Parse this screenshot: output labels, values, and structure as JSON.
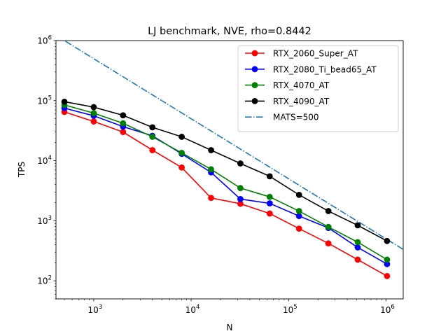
{
  "chart_data": {
    "type": "line",
    "title": "LJ benchmark, NVE, rho=0.8442",
    "xlabel": "N",
    "ylabel": "TPS",
    "xscale": "log",
    "yscale": "log",
    "xlim": [
      410,
      1500000
    ],
    "ylim": [
      50,
      1000000
    ],
    "grid": false,
    "legend_position": "top-right",
    "x_tick_labels": [
      {
        "value": 1000,
        "base": "10",
        "exp": "3"
      },
      {
        "value": 10000,
        "base": "10",
        "exp": "4"
      },
      {
        "value": 100000,
        "base": "10",
        "exp": "5"
      },
      {
        "value": 1000000,
        "base": "10",
        "exp": "6"
      }
    ],
    "y_tick_labels": [
      {
        "value": 100,
        "base": "10",
        "exp": "2"
      },
      {
        "value": 1000,
        "base": "10",
        "exp": "3"
      },
      {
        "value": 10000,
        "base": "10",
        "exp": "4"
      },
      {
        "value": 100000,
        "base": "10",
        "exp": "5"
      },
      {
        "value": 1000000,
        "base": "10",
        "exp": "6"
      }
    ],
    "x": [
      500,
      1000,
      2000,
      4000,
      8000,
      16000,
      32000,
      64000,
      128000,
      256000,
      512000,
      1024000
    ],
    "series": [
      {
        "name": "RTX_2060_Super_AT",
        "color": "#ff0000",
        "marker": "circle",
        "values": [
          65000,
          45000,
          30000,
          15000,
          7700,
          2400,
          1920,
          1320,
          740,
          420,
          225,
          120
        ]
      },
      {
        "name": "RTX_2080_Ti_bead65_AT",
        "color": "#0000ff",
        "marker": "circle",
        "values": [
          75000,
          56000,
          37000,
          26000,
          13000,
          6400,
          2300,
          1950,
          1200,
          760,
          360,
          190
        ]
      },
      {
        "name": "RTX_4070_AT",
        "color": "#008000",
        "marker": "circle",
        "values": [
          85000,
          62000,
          42000,
          25000,
          13500,
          7200,
          3500,
          2500,
          1450,
          790,
          440,
          225
        ]
      },
      {
        "name": "RTX_4090_AT",
        "color": "#000000",
        "marker": "circle",
        "values": [
          96000,
          78000,
          57000,
          36000,
          25000,
          15000,
          9000,
          5500,
          2700,
          1450,
          840,
          460
        ]
      }
    ],
    "reference_line": {
      "name": "MATS=500",
      "color": "#1f77b4",
      "style": "dash-dot",
      "description_formula": "TPS = 5e8 / N",
      "x": [
        410,
        1500000
      ],
      "values": [
        1219512,
        333.33
      ]
    }
  }
}
